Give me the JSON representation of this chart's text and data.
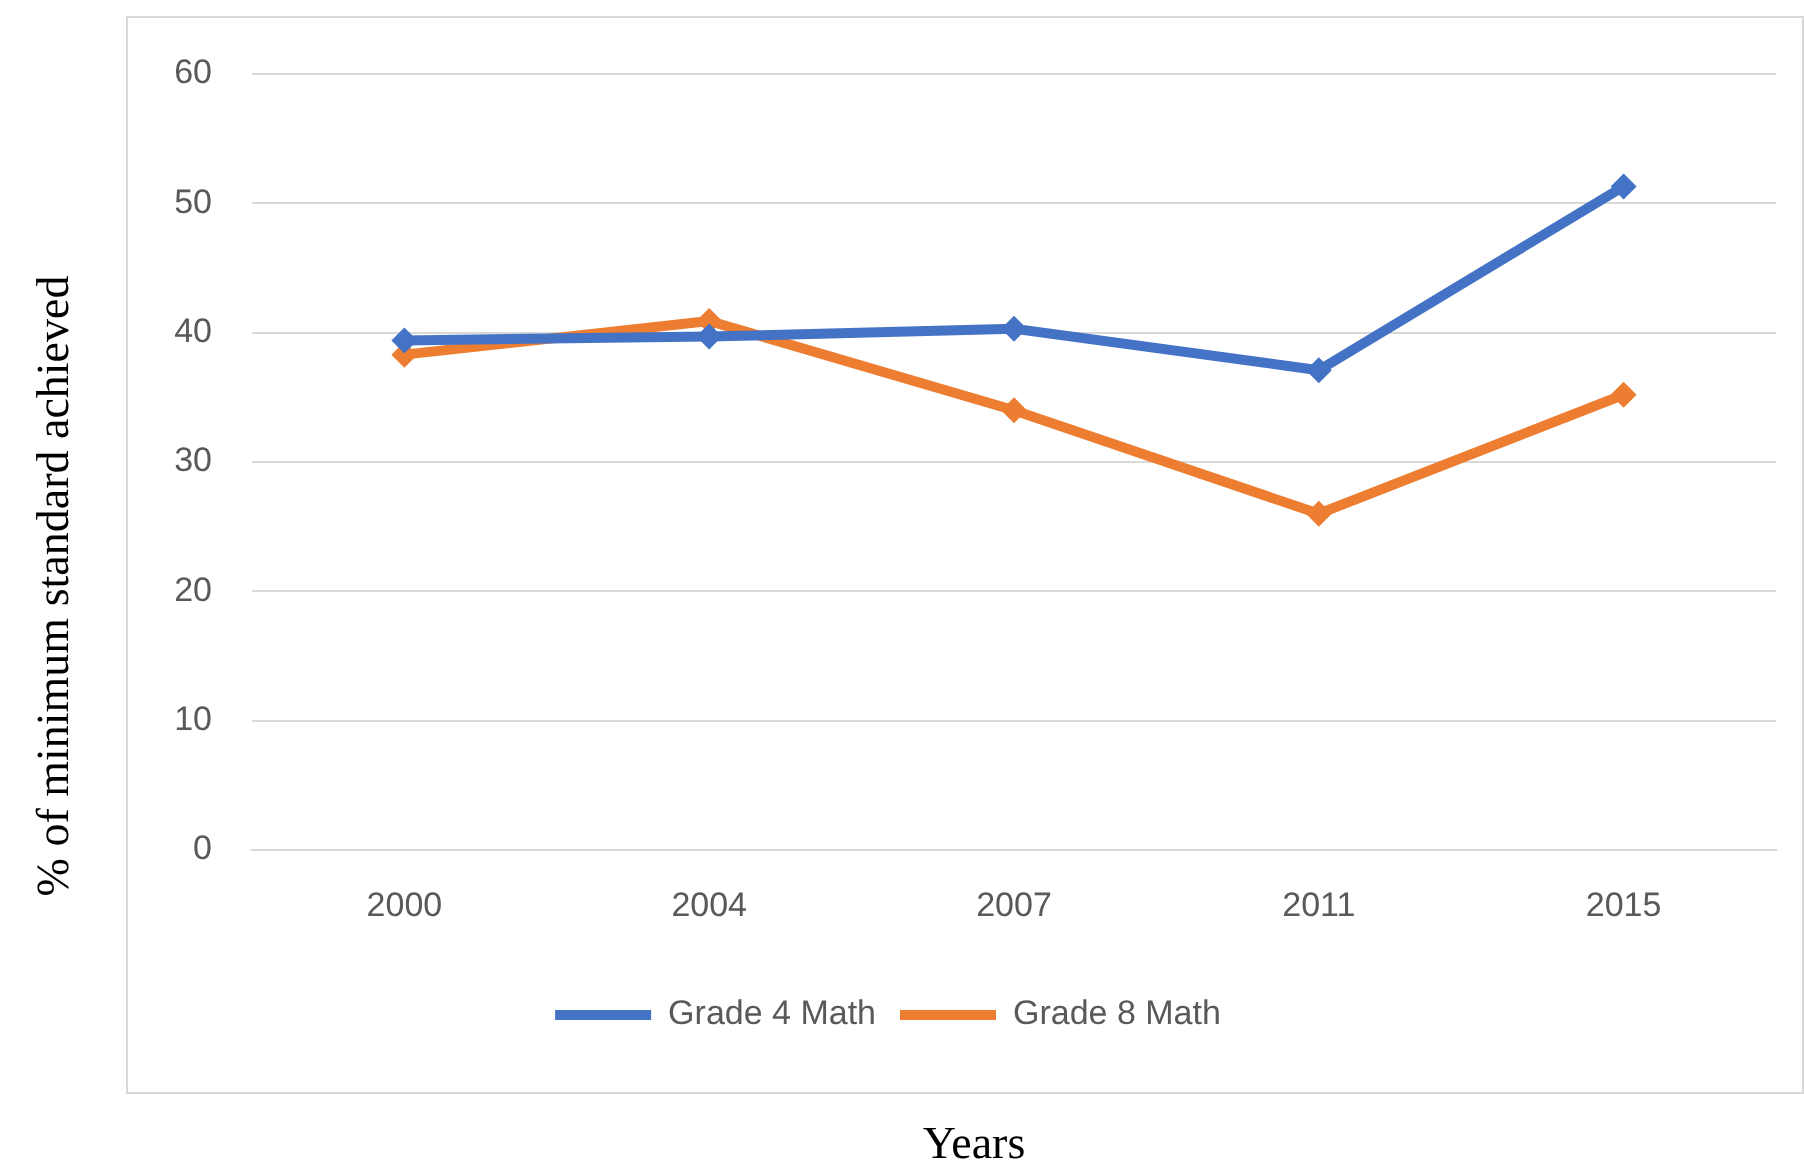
{
  "chart_data": {
    "type": "line",
    "xlabel": "Years",
    "ylabel": "% of minimum standard achieved",
    "categories": [
      "2000",
      "2004",
      "2007",
      "2011",
      "2015"
    ],
    "series": [
      {
        "name": "Grade 4 Math",
        "color": "#4472c4",
        "values": [
          39.4,
          39.7,
          40.3,
          37.1,
          51.3
        ]
      },
      {
        "name": "Grade 8 Math",
        "color": "#ed7d31",
        "values": [
          38.3,
          40.9,
          34.0,
          26.0,
          35.2
        ]
      }
    ],
    "ylim": [
      0,
      60
    ],
    "yticks": [
      0,
      10,
      20,
      30,
      40,
      50,
      60
    ],
    "grid": "y",
    "legend": "bottom",
    "marker": "diamond",
    "line_style": "solid"
  }
}
